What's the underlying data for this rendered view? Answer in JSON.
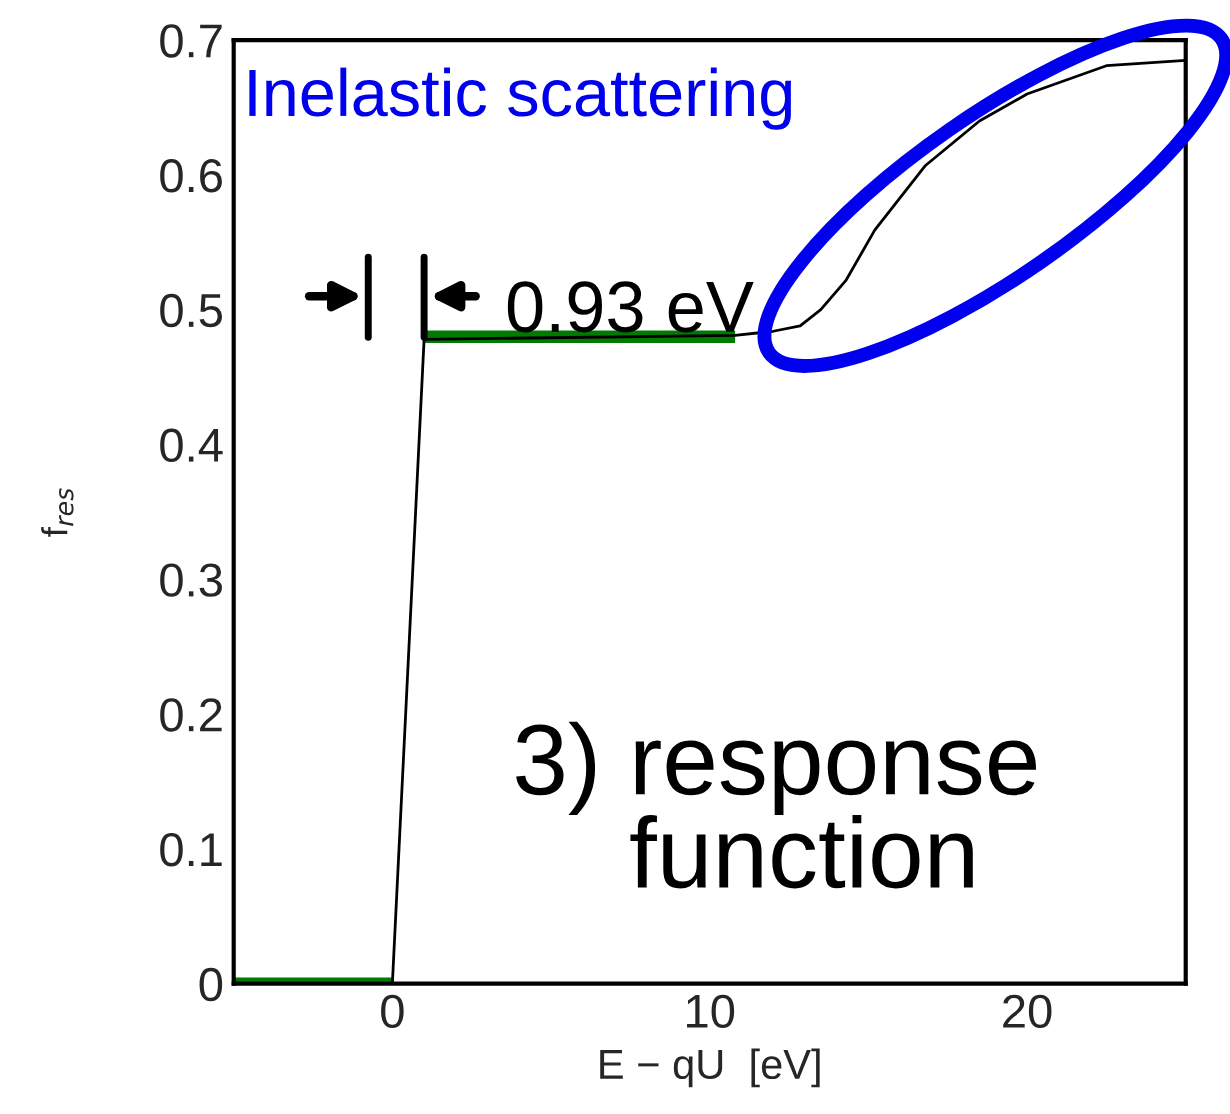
{
  "chart_data": {
    "type": "line",
    "xlabel": "E − qU  [eV]",
    "ylabel": "f$_{res}$",
    "xlim": [
      -5,
      25
    ],
    "xticks": [
      0,
      10,
      20
    ],
    "ylim": [
      0,
      0.7
    ],
    "yticks": [
      0,
      0.1,
      0.2,
      0.3,
      0.4,
      0.5,
      0.6,
      0.7
    ],
    "grid": false,
    "legend": false,
    "series": [
      {
        "color": "#000000",
        "x": [
          -5,
          0,
          1.0,
          10.8,
          12.0,
          12.85,
          13.5,
          14.3,
          15.2,
          16.8,
          18.5,
          20,
          22.5,
          25
        ],
        "values": [
          0,
          0,
          0.478,
          0.481,
          0.484,
          0.488,
          0.5,
          0.522,
          0.559,
          0.607,
          0.64,
          0.66,
          0.681,
          0.685
        ]
      },
      {
        "color": "#007a00",
        "x": [
          -5,
          0,
          0.5,
          1.0,
          10.8
        ],
        "values": [
          0,
          0,
          null,
          0.48,
          0.48
        ]
      }
    ],
    "annotations": [
      "Inelastic scattering",
      "0.93 eV",
      "3) response function"
    ]
  }
}
